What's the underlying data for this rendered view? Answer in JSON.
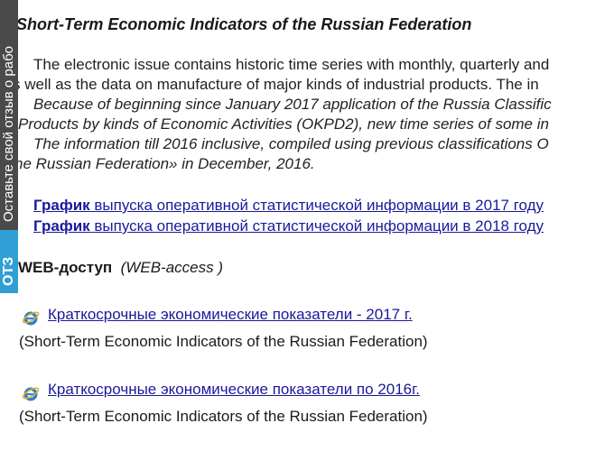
{
  "feedback_tab": {
    "label": "Оставьте свой отзыв о рабо",
    "badge": "ОТЗ"
  },
  "title": "Short-Term Economic Indicators of the Russian Federation",
  "paragraphs": [
    "The electronic issue contains historic time series with monthly, quarterly and",
    "s well as the data on manufacture of major kinds of industrial products. The in",
    "Because of beginning since January 2017 application of the Russia Classific",
    "Products by kinds of Economic Activities (OKPD2), new time series of some in",
    "The information till 2016 inclusive, compiled using previous classifications O",
    "he Russian Federation» in December, 2016."
  ],
  "schedule_links": [
    {
      "bold": "График",
      "rest": " выпуска оперативной статистической информации в 2017 году"
    },
    {
      "bold": "График",
      "rest": " выпуска оперативной статистической информации в 2018 году"
    }
  ],
  "web_access": {
    "label": "WEB-доступ",
    "english": "(WEB-access )"
  },
  "issues": [
    {
      "link": "Краткосрочные экономические показатели - 2017 г.",
      "english": "(Short-Term Economic Indicators of the Russian Federation)"
    },
    {
      "link": "Краткосрочные экономические показатели по 2016г.",
      "english": "(Short-Term Economic Indicators of the Russian Federation)"
    }
  ]
}
